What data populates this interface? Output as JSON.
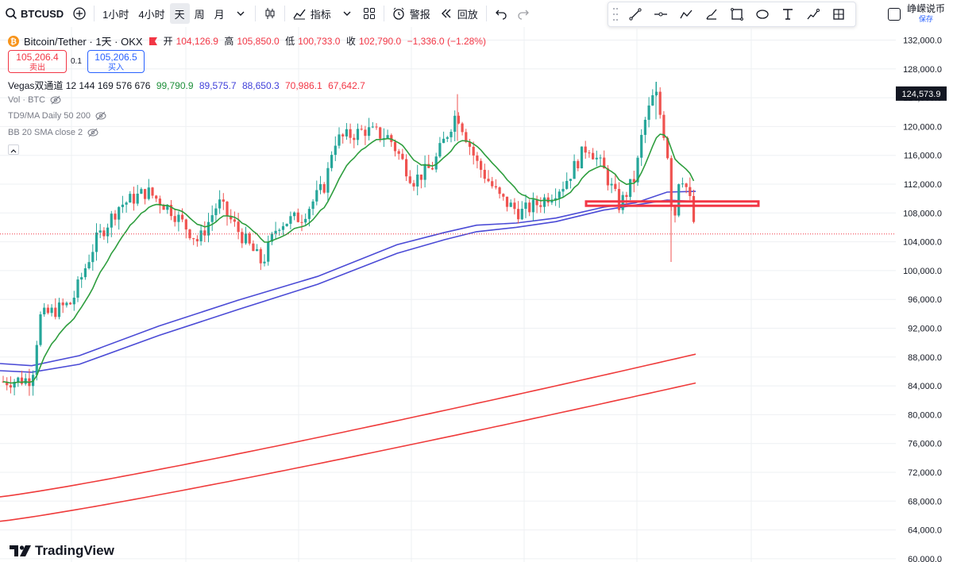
{
  "toolbar": {
    "symbol": "BTCUSD",
    "intervals": [
      "1小时",
      "4小时",
      "天",
      "周",
      "月"
    ],
    "selected_interval": "天",
    "indicators_label": "指标",
    "alert_label": "警报",
    "replay_label": "回放"
  },
  "save": {
    "label": "峥嵘说币",
    "sub": "保存"
  },
  "legend": {
    "title": "Bitcoin/Tether · 1天 · OKX",
    "open_label": "开",
    "open": "104,126.9",
    "high_label": "高",
    "high": "105,850.0",
    "low_label": "低",
    "low": "100,733.0",
    "close_label": "收",
    "close": "102,790.0",
    "change": "−1,336.0 (−1.28%)",
    "sell_price": "105,206.4",
    "sell_label": "卖出",
    "spread": "0.1",
    "buy_price": "105,206.5",
    "buy_label": "买入",
    "vegas_name": "Vegas双通道 12 144 169 576 676",
    "vegas_values": [
      "99,790.9",
      "89,575.7",
      "88,650.3",
      "70,986.1",
      "67,642.7"
    ],
    "vol": "Vol · BTC",
    "td9": "TD9/MA Daily 50 200",
    "bb": "BB 20 SMA close 2"
  },
  "colors": {
    "up": "#26a69a",
    "down": "#ef5350",
    "ema12": "#2e9e3e",
    "vegas_blue": "#4b4bd6",
    "vegas_red": "#ef3b3b",
    "grid": "#eef0f3",
    "accent": "#2962ff"
  },
  "icons": [
    "search-icon",
    "add-symbol-icon",
    "chevron-down-icon",
    "candles-icon",
    "indicators-icon",
    "layout-icon",
    "alert-icon",
    "replay-icon",
    "undo-icon",
    "redo-icon",
    "trend-line-icon",
    "horizontal-line-icon",
    "path-icon",
    "brush-icon",
    "rectangle-icon",
    "shape-icon",
    "text-icon",
    "measure-icon",
    "fib-icon"
  ],
  "brand": "TradingView",
  "chart_data": {
    "type": "candlestick",
    "price_axis": [
      "132,000.0",
      "128,000.0",
      "124,000.0",
      "120,000.0",
      "116,000.0",
      "112,000.0",
      "108,000.0",
      "104,000.0",
      "100,000.0",
      "96,000.0",
      "92,000.0",
      "88,000.0",
      "84,000.0",
      "80,000.0",
      "76,000.0",
      "72,000.0",
      "68,000.0",
      "64,000.0",
      "60,000.0"
    ],
    "ylim": [
      60000,
      134000
    ],
    "current_price_label": "124,573.9",
    "current_price": 124573.9,
    "last_close": 102790.0,
    "highlight_zone": [
      109000,
      109600
    ],
    "grid": true
  }
}
